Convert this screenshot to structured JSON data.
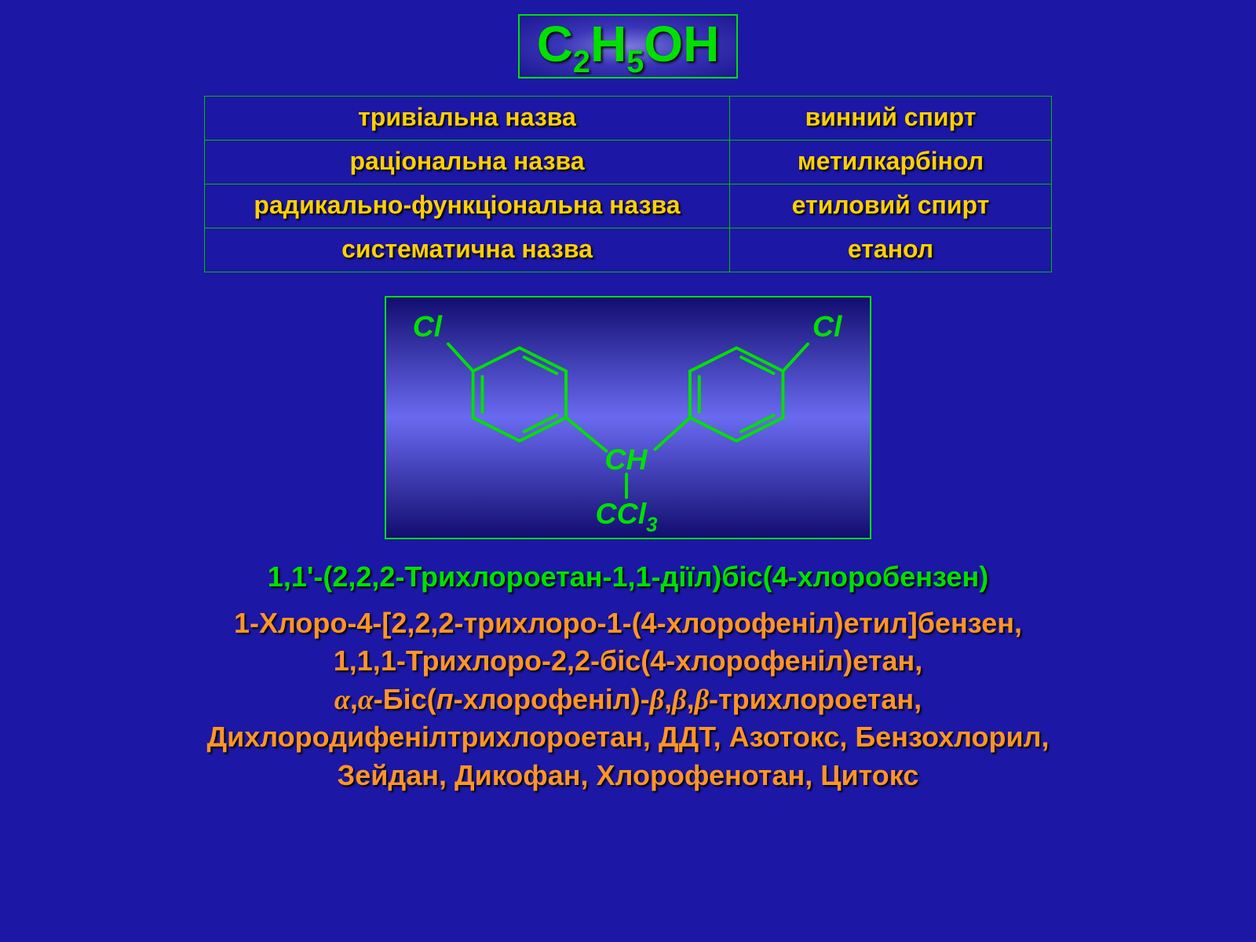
{
  "formula": {
    "html": "C<sub>2</sub>H<sub>5</sub>OH"
  },
  "table": {
    "rows": [
      {
        "key": "тривіальна назва",
        "val": "винний спирт"
      },
      {
        "key": "раціональна назва",
        "val": "метилкарбінол"
      },
      {
        "key": "радикально-функціональна назва",
        "val": "етиловий спирт"
      },
      {
        "key": "систематична назва",
        "val": "етанол"
      }
    ],
    "colors": {
      "border": "#00c000",
      "text": "#ffd000"
    }
  },
  "structure": {
    "labels": {
      "cl_left": "Cl",
      "cl_right": "Cl",
      "ch": "CH",
      "ccl3_base": "CCl",
      "ccl3_sub": "3"
    },
    "stroke": "#00e000",
    "stroke_width": 4
  },
  "names": {
    "iupac": {
      "text": "1,1'-(2,2,2-Трихлороетан-1,1-діїл)біс(4-хлоробензен)",
      "color": "#00e000"
    },
    "other_color": "#ff9428",
    "line1": "1-Хлоро-4-[2,2,2-трихлоро-1-(4-хлорофеніл)етил]бензен,",
    "line2": "1,1,1-Трихлоро-2,2-біс(4-хлорофеніл)етан,",
    "line3_pre": "",
    "line3_a": "α",
    "line3_sep1": ",",
    "line3_b": "α",
    "line3_mid": "-Біс(",
    "line3_p": "п",
    "line3_mid2": "-хлорофеніл)-",
    "line3_c": "β",
    "line3_sep2": ",",
    "line3_d": "β",
    "line3_sep3": ",",
    "line3_e": "β",
    "line3_post": "-трихлороетан,",
    "line4": "Дихлородифенілтрихлороетан, ДДТ, Азотокс, Бензохлорил,",
    "line5": "Зейдан, Дикофан, Хлорофенотан, Цитокс"
  },
  "colors": {
    "background": "#1c17a5",
    "accent_green": "#00e000"
  }
}
